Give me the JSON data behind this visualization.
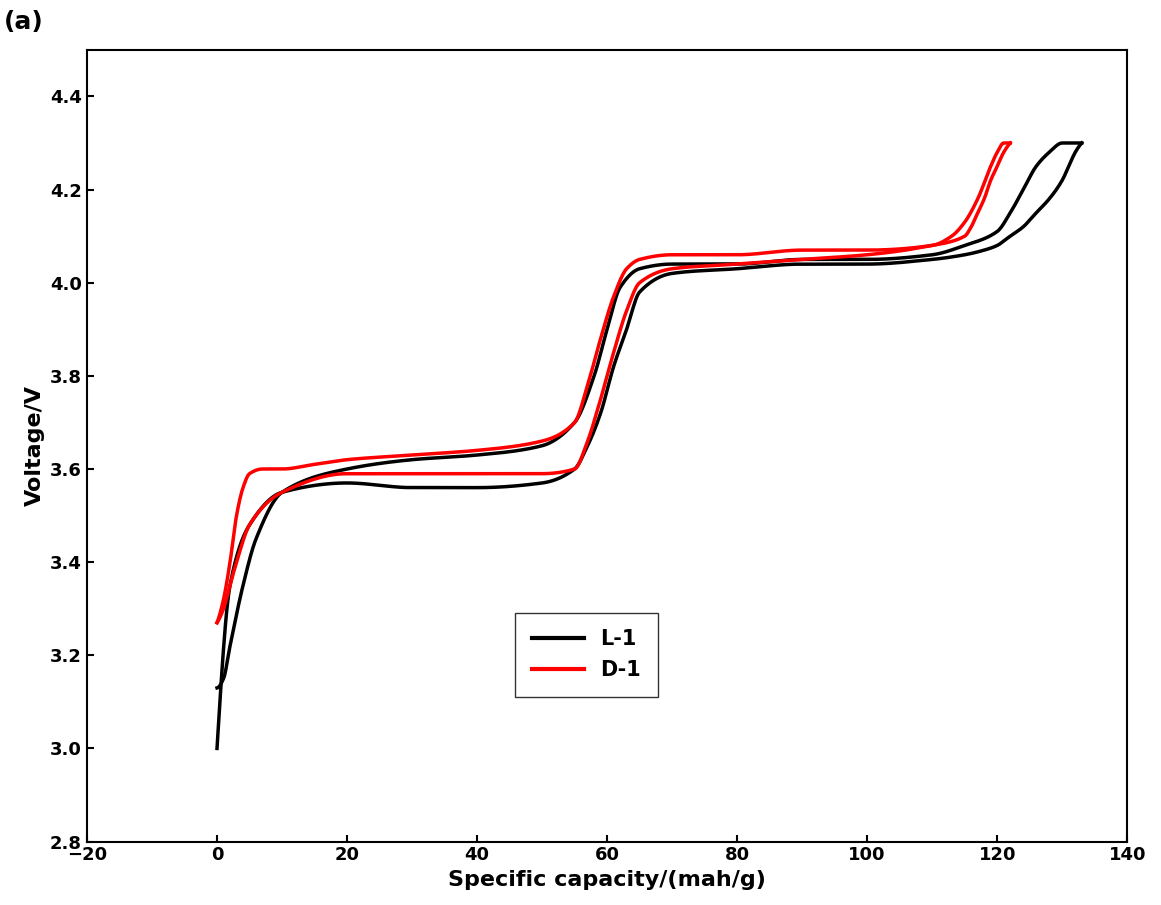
{
  "title": "(a)",
  "xlabel": "Specific capacity/(mah/g)",
  "ylabel": "Voltage/V",
  "xlim": [
    -20,
    140
  ],
  "ylim": [
    2.8,
    4.5
  ],
  "xticks": [
    -20,
    0,
    20,
    40,
    60,
    80,
    100,
    120,
    140
  ],
  "yticks": [
    2.8,
    3.0,
    3.2,
    3.4,
    3.6,
    3.8,
    4.0,
    4.2,
    4.4
  ],
  "legend": [
    "L-1",
    "D-1"
  ],
  "colors": [
    "black",
    "red"
  ],
  "linewidth": 2.5,
  "background_color": "#ffffff",
  "L1_charge_x": [
    0,
    1,
    2,
    4,
    6,
    10,
    20,
    30,
    40,
    50,
    55,
    58,
    60,
    62,
    65,
    70,
    80,
    90,
    100,
    110,
    115,
    120,
    122,
    124,
    126,
    128,
    130,
    132,
    133
  ],
  "L1_charge_y": [
    3.13,
    3.15,
    3.22,
    3.35,
    3.45,
    3.55,
    3.6,
    3.62,
    3.63,
    3.65,
    3.7,
    3.8,
    3.9,
    3.99,
    4.03,
    4.04,
    4.04,
    4.05,
    4.05,
    4.06,
    4.08,
    4.11,
    4.15,
    4.2,
    4.25,
    4.28,
    4.3,
    4.3,
    4.3
  ],
  "L1_discharge_x": [
    133,
    132,
    131,
    130,
    128,
    126,
    124,
    122,
    120,
    118,
    115,
    110,
    100,
    90,
    80,
    70,
    65,
    63,
    61,
    59,
    57,
    55,
    50,
    40,
    30,
    20,
    10,
    5,
    2,
    0
  ],
  "L1_discharge_y": [
    4.3,
    4.28,
    4.25,
    4.22,
    4.18,
    4.15,
    4.12,
    4.1,
    4.08,
    4.07,
    4.06,
    4.05,
    4.04,
    4.04,
    4.03,
    4.02,
    3.98,
    3.9,
    3.82,
    3.72,
    3.65,
    3.6,
    3.57,
    3.56,
    3.56,
    3.57,
    3.55,
    3.48,
    3.35,
    3.0
  ],
  "D1_charge_x": [
    0,
    1,
    2,
    3,
    4,
    5,
    7,
    10,
    15,
    20,
    30,
    40,
    50,
    55,
    57,
    59,
    61,
    63,
    65,
    70,
    80,
    90,
    100,
    110,
    113,
    115,
    117,
    119,
    120,
    121,
    122
  ],
  "D1_charge_y": [
    3.27,
    3.32,
    3.4,
    3.5,
    3.56,
    3.59,
    3.6,
    3.6,
    3.61,
    3.62,
    3.63,
    3.64,
    3.66,
    3.7,
    3.78,
    3.88,
    3.97,
    4.03,
    4.05,
    4.06,
    4.06,
    4.07,
    4.07,
    4.08,
    4.1,
    4.13,
    4.18,
    4.25,
    4.28,
    4.3,
    4.3
  ],
  "D1_discharge_x": [
    122,
    121,
    120,
    119,
    118,
    117,
    116,
    115,
    110,
    100,
    90,
    80,
    70,
    65,
    63,
    61,
    59,
    57,
    55,
    50,
    40,
    30,
    20,
    10,
    5,
    3,
    2,
    1,
    0
  ],
  "D1_discharge_y": [
    4.3,
    4.28,
    4.25,
    4.22,
    4.18,
    4.15,
    4.12,
    4.1,
    4.08,
    4.06,
    4.05,
    4.04,
    4.03,
    4.0,
    3.94,
    3.85,
    3.75,
    3.66,
    3.6,
    3.59,
    3.59,
    3.59,
    3.59,
    3.55,
    3.48,
    3.4,
    3.35,
    3.3,
    3.27
  ]
}
